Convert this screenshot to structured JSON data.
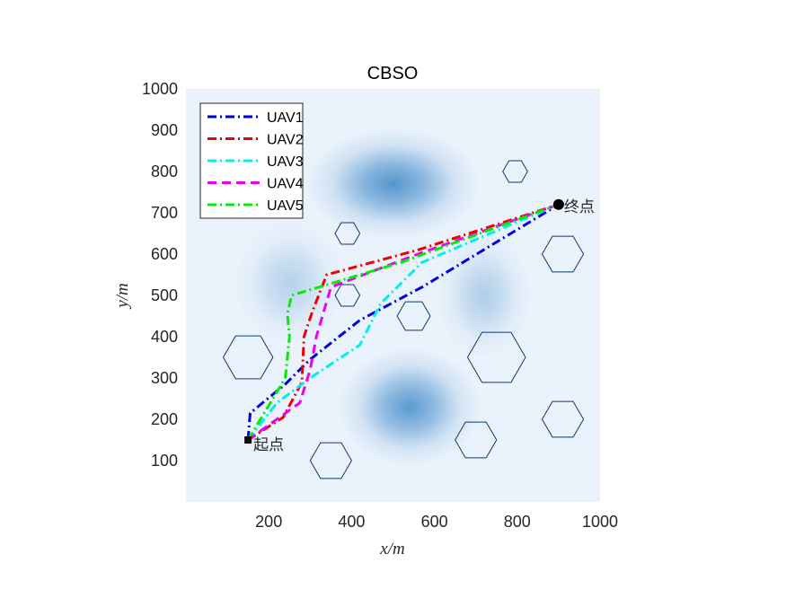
{
  "chart_data": {
    "type": "line",
    "title": "CBSO",
    "xlabel": "x/m",
    "ylabel": "y/m",
    "xlim": [
      0,
      1000
    ],
    "ylim": [
      0,
      1000
    ],
    "xticks": [
      200,
      400,
      600,
      800,
      1000
    ],
    "yticks": [
      100,
      200,
      300,
      400,
      500,
      600,
      700,
      800,
      900,
      1000
    ],
    "grid": false,
    "legend_position": "top-left",
    "start": {
      "x": 150,
      "y": 150,
      "label": "起点"
    },
    "end": {
      "x": 900,
      "y": 720,
      "label": "终点"
    },
    "series": [
      {
        "name": "UAV1",
        "color": "#0000dd",
        "style": "dashdot",
        "x": [
          150,
          155,
          240,
          300,
          420,
          570,
          900
        ],
        "y": [
          150,
          215,
          285,
          345,
          440,
          520,
          720
        ]
      },
      {
        "name": "UAV2",
        "color": "#ee0000",
        "style": "dashdot",
        "x": [
          150,
          235,
          280,
          285,
          305,
          340,
          560,
          900
        ],
        "y": [
          150,
          205,
          290,
          400,
          460,
          550,
          610,
          720
        ]
      },
      {
        "name": "UAV3",
        "color": "#00eeee",
        "style": "dashdot",
        "x": [
          150,
          220,
          300,
          420,
          470,
          570,
          900
        ],
        "y": [
          150,
          240,
          300,
          380,
          480,
          580,
          720
        ]
      },
      {
        "name": "UAV4",
        "color": "#ee00ee",
        "style": "dashed",
        "x": [
          150,
          275,
          300,
          315,
          350,
          560,
          900
        ],
        "y": [
          150,
          240,
          320,
          400,
          520,
          600,
          720
        ]
      },
      {
        "name": "UAV5",
        "color": "#00ee00",
        "style": "dashdot",
        "x": [
          150,
          240,
          250,
          245,
          255,
          520,
          900
        ],
        "y": [
          150,
          300,
          400,
          455,
          500,
          580,
          720
        ]
      }
    ],
    "obstacles_hexagon": [
      {
        "cx": 795,
        "cy": 800,
        "r": 30
      },
      {
        "cx": 390,
        "cy": 650,
        "r": 30
      },
      {
        "cx": 910,
        "cy": 600,
        "r": 50
      },
      {
        "cx": 390,
        "cy": 500,
        "r": 30
      },
      {
        "cx": 550,
        "cy": 450,
        "r": 40
      },
      {
        "cx": 150,
        "cy": 350,
        "r": 60
      },
      {
        "cx": 750,
        "cy": 350,
        "r": 70
      },
      {
        "cx": 910,
        "cy": 200,
        "r": 50
      },
      {
        "cx": 700,
        "cy": 150,
        "r": 50
      },
      {
        "cx": 350,
        "cy": 100,
        "r": 50
      }
    ],
    "terrain_peaks": [
      {
        "x": 500,
        "y": 770,
        "sx": 110,
        "sy": 70,
        "h": 1.0
      },
      {
        "x": 540,
        "y": 230,
        "sx": 90,
        "sy": 75,
        "h": 0.95
      },
      {
        "x": 250,
        "y": 530,
        "sx": 70,
        "sy": 80,
        "h": 0.35
      },
      {
        "x": 720,
        "y": 500,
        "sx": 60,
        "sy": 80,
        "h": 0.4
      }
    ]
  }
}
